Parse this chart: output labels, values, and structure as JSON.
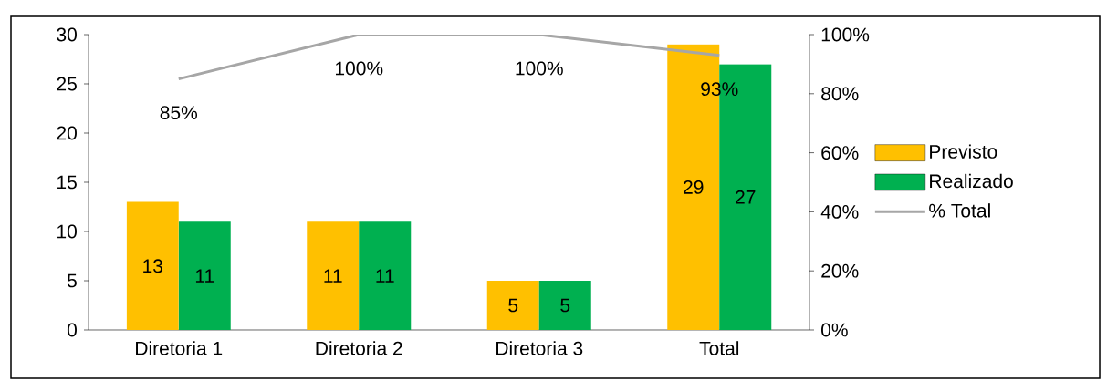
{
  "chart_data": {
    "type": "bar",
    "categories": [
      "Diretoria 1",
      "Diretoria 2",
      "Diretoria 3",
      "Total"
    ],
    "series": [
      {
        "name": "Previsto",
        "color": "#ffc000",
        "values": [
          13,
          11,
          5,
          29
        ],
        "value_labels": [
          "13",
          "11",
          "5",
          "29"
        ]
      },
      {
        "name": "Realizado",
        "color": "#00b050",
        "values": [
          11,
          11,
          5,
          27
        ],
        "value_labels": [
          "11",
          "11",
          "5",
          "27"
        ]
      },
      {
        "name": "% Total",
        "type": "line",
        "axis": "y2",
        "color": "#a6a6a6",
        "values": [
          85,
          100,
          100,
          93
        ],
        "value_labels": [
          "85%",
          "100%",
          "100%",
          "93%"
        ]
      }
    ],
    "ylim": [
      0,
      30
    ],
    "yticks": [
      0,
      5,
      10,
      15,
      20,
      25,
      30
    ],
    "y2lim": [
      0,
      100
    ],
    "y2ticks": [
      {
        "value": 0,
        "label": "0%"
      },
      {
        "value": 20,
        "label": "20%"
      },
      {
        "value": 40,
        "label": "40%"
      },
      {
        "value": 60,
        "label": "60%"
      },
      {
        "value": 80,
        "label": "80%"
      },
      {
        "value": 100,
        "label": "100%"
      }
    ],
    "legend": "right",
    "grid": false,
    "marker": "none"
  }
}
